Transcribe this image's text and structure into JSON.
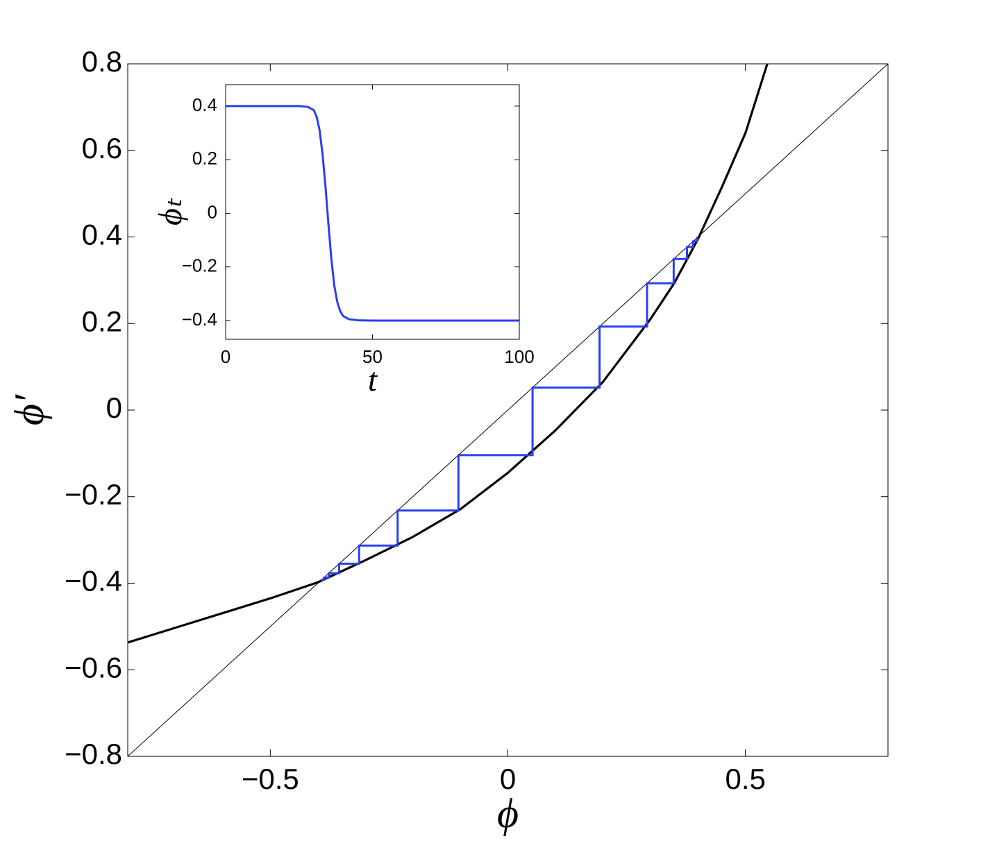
{
  "chart_data": [
    {
      "type": "cobweb",
      "xlabel": "ϕ",
      "ylabel": "ϕ′",
      "xlim": [
        -0.8,
        0.8
      ],
      "ylim": [
        -0.8,
        0.8
      ],
      "xticks": [
        {
          "value": -0.5,
          "label": "−0.5"
        },
        0,
        0.5
      ],
      "yticks": [
        {
          "value": -0.8,
          "label": "−0.8"
        },
        {
          "value": -0.6,
          "label": "−0.6"
        },
        {
          "value": -0.4,
          "label": "−0.4"
        },
        {
          "value": -0.2,
          "label": "−0.2"
        },
        0,
        0.2,
        0.4,
        0.6,
        0.8
      ],
      "diagonal": true,
      "x": [
        -0.8,
        -0.7,
        -0.6,
        -0.5,
        -0.4,
        -0.3,
        -0.2,
        -0.1,
        0,
        0.1,
        0.2,
        0.3,
        0.35,
        0.4,
        0.45,
        0.5,
        0.546
      ],
      "series": [
        {
          "color": "#000000",
          "values": [
            -0.537,
            -0.503,
            -0.469,
            -0.435,
            -0.398,
            -0.347,
            -0.293,
            -0.229,
            -0.145,
            -0.047,
            0.065,
            0.21,
            0.293,
            0.395,
            0.514,
            0.64,
            0.8
          ]
        }
      ],
      "orbit": {
        "color": "#2a3ff0",
        "values": [
          0.398,
          0.39,
          0.377,
          0.349,
          0.293,
          0.193,
          0.052,
          -0.104,
          -0.232,
          -0.313,
          -0.355,
          -0.377,
          -0.387,
          -0.392
        ]
      }
    },
    {
      "type": "line",
      "xlabel": "t",
      "ylabel": "ϕₜ",
      "xlim": [
        0,
        100
      ],
      "ylim": [
        -0.47,
        0.48
      ],
      "xticks": [
        0,
        50,
        100
      ],
      "yticks": [
        {
          "value": -0.4,
          "label": "−0.4"
        },
        {
          "value": -0.2,
          "label": "−0.2"
        },
        0,
        0.2,
        0.4
      ],
      "x": [
        0,
        10,
        20,
        25,
        28,
        30,
        31,
        32,
        33,
        34,
        35,
        36,
        37,
        38,
        39,
        40,
        42,
        45,
        50,
        60,
        80,
        100
      ],
      "series": [
        {
          "color": "#2a3ff0",
          "values": [
            0.4,
            0.4,
            0.4,
            0.4,
            0.397,
            0.385,
            0.36,
            0.31,
            0.22,
            0.1,
            -0.04,
            -0.17,
            -0.27,
            -0.33,
            -0.365,
            -0.383,
            -0.395,
            -0.399,
            -0.4,
            -0.4,
            -0.4,
            -0.4
          ]
        }
      ]
    }
  ]
}
